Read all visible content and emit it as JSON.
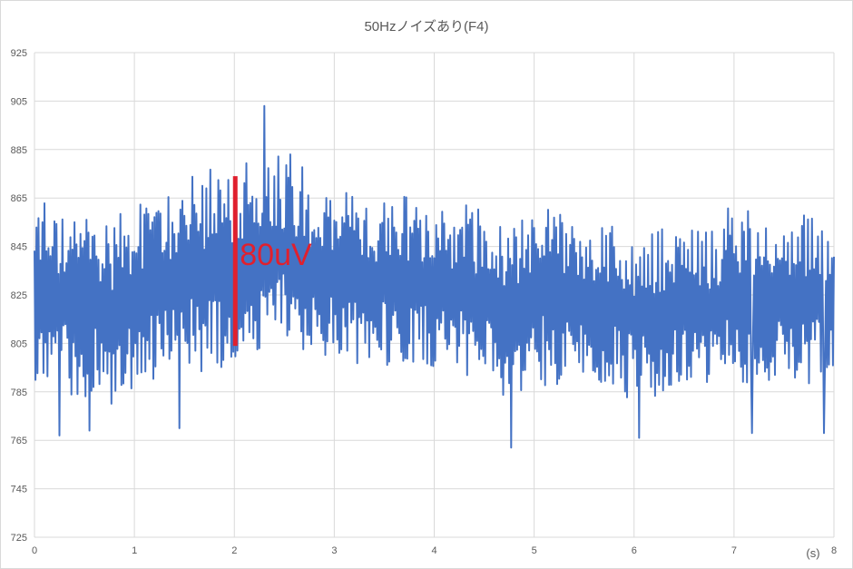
{
  "chart_data": {
    "type": "line",
    "title": "50Hzノイズあり(F4)",
    "xlabel": "(s)",
    "ylabel": "",
    "xlim": [
      0,
      8
    ],
    "ylim": [
      725,
      925
    ],
    "x_ticks": [
      "0",
      "1",
      "2",
      "3",
      "4",
      "5",
      "6",
      "7",
      "8"
    ],
    "y_ticks": [
      "725",
      "745",
      "765",
      "785",
      "805",
      "825",
      "845",
      "865",
      "885",
      "905",
      "925"
    ],
    "grid": true,
    "legend": "none",
    "series": [
      {
        "color": "#4472c4",
        "style": "dense oscillation (50Hz noise)",
        "x": [
          0,
          0.25,
          0.5,
          0.75,
          1.0,
          1.25,
          1.5,
          1.75,
          2.0,
          2.25,
          2.5,
          2.75,
          3.0,
          3.25,
          3.5,
          3.75,
          4.0,
          4.25,
          4.5,
          4.75,
          5.0,
          5.25,
          5.5,
          5.75,
          6.0,
          6.25,
          6.5,
          6.75,
          7.0,
          7.25,
          7.5,
          7.75,
          8.0
        ],
        "envelope_max": [
          866,
          865,
          861,
          855,
          864,
          868,
          872,
          878,
          877,
          889,
          888,
          876,
          871,
          867,
          866,
          866,
          862,
          865,
          860,
          851,
          864,
          862,
          858,
          856,
          848,
          852,
          855,
          851,
          866,
          860,
          862,
          858,
          858
        ],
        "envelope_min": [
          786,
          780,
          783,
          779,
          784,
          790,
          793,
          791,
          797,
          802,
          804,
          800,
          795,
          795,
          795,
          796,
          795,
          791,
          790,
          780,
          786,
          788,
          785,
          788,
          780,
          782,
          786,
          785,
          786,
          785,
          784,
          788,
          792
        ],
        "typical_max": [
          862,
          858,
          855,
          850,
          860,
          862,
          866,
          870,
          871,
          880,
          878,
          868,
          864,
          862,
          860,
          860,
          856,
          858,
          852,
          848,
          858,
          856,
          853,
          850,
          845,
          848,
          850,
          847,
          860,
          855,
          855,
          852,
          852
        ],
        "typical_min": [
          790,
          786,
          788,
          785,
          790,
          795,
          798,
          797,
          800,
          808,
          808,
          805,
          800,
          800,
          800,
          800,
          798,
          796,
          795,
          788,
          792,
          793,
          790,
          792,
          786,
          788,
          790,
          790,
          791,
          790,
          790,
          792,
          796
        ],
        "extremes": [
          {
            "x": 0.25,
            "y": 767
          },
          {
            "x": 0.55,
            "y": 769
          },
          {
            "x": 1.45,
            "y": 770
          },
          {
            "x": 2.3,
            "y": 903
          },
          {
            "x": 4.77,
            "y": 762
          },
          {
            "x": 6.05,
            "y": 766
          },
          {
            "x": 7.18,
            "y": 768
          },
          {
            "x": 7.9,
            "y": 768
          }
        ]
      }
    ],
    "annotation": {
      "text": "80uV",
      "color": "#e0202e",
      "x": 2.0,
      "y_top": 874,
      "y_bottom": 804
    }
  }
}
